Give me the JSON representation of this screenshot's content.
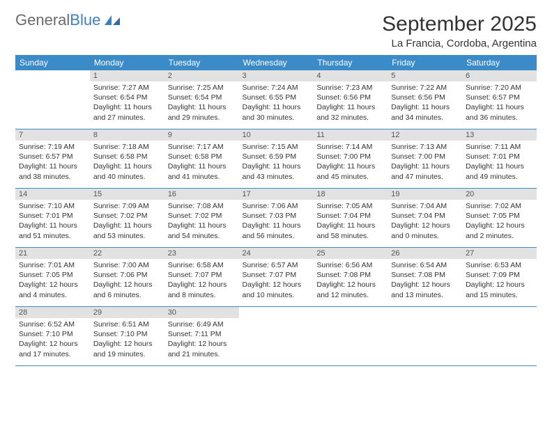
{
  "logo": {
    "text1": "General",
    "text2": "Blue",
    "text1_color": "#6a6a6a",
    "text2_color": "#3b7fc4",
    "fontsize": 22,
    "icon_color": "#3b7fc4"
  },
  "title": {
    "month": "September 2025",
    "month_fontsize": 30,
    "location": "La Francia, Cordoba, Argentina",
    "location_fontsize": 15
  },
  "calendar": {
    "header_bg": "#3b8bc9",
    "header_fg": "#ffffff",
    "daynum_bg": "#e2e2e2",
    "daynum_fg": "#555555",
    "body_fg": "#333333",
    "border_color": "#3b8bc9",
    "body_fontsize": 10.5,
    "daynum_fontsize": 11,
    "header_fontsize": 12,
    "columns": [
      "Sunday",
      "Monday",
      "Tuesday",
      "Wednesday",
      "Thursday",
      "Friday",
      "Saturday"
    ],
    "weeks": [
      [
        {
          "empty": true
        },
        {
          "n": "1",
          "sunrise": "Sunrise: 7:27 AM",
          "sunset": "Sunset: 6:54 PM",
          "day1": "Daylight: 11 hours",
          "day2": "and 27 minutes."
        },
        {
          "n": "2",
          "sunrise": "Sunrise: 7:25 AM",
          "sunset": "Sunset: 6:54 PM",
          "day1": "Daylight: 11 hours",
          "day2": "and 29 minutes."
        },
        {
          "n": "3",
          "sunrise": "Sunrise: 7:24 AM",
          "sunset": "Sunset: 6:55 PM",
          "day1": "Daylight: 11 hours",
          "day2": "and 30 minutes."
        },
        {
          "n": "4",
          "sunrise": "Sunrise: 7:23 AM",
          "sunset": "Sunset: 6:56 PM",
          "day1": "Daylight: 11 hours",
          "day2": "and 32 minutes."
        },
        {
          "n": "5",
          "sunrise": "Sunrise: 7:22 AM",
          "sunset": "Sunset: 6:56 PM",
          "day1": "Daylight: 11 hours",
          "day2": "and 34 minutes."
        },
        {
          "n": "6",
          "sunrise": "Sunrise: 7:20 AM",
          "sunset": "Sunset: 6:57 PM",
          "day1": "Daylight: 11 hours",
          "day2": "and 36 minutes."
        }
      ],
      [
        {
          "n": "7",
          "sunrise": "Sunrise: 7:19 AM",
          "sunset": "Sunset: 6:57 PM",
          "day1": "Daylight: 11 hours",
          "day2": "and 38 minutes."
        },
        {
          "n": "8",
          "sunrise": "Sunrise: 7:18 AM",
          "sunset": "Sunset: 6:58 PM",
          "day1": "Daylight: 11 hours",
          "day2": "and 40 minutes."
        },
        {
          "n": "9",
          "sunrise": "Sunrise: 7:17 AM",
          "sunset": "Sunset: 6:58 PM",
          "day1": "Daylight: 11 hours",
          "day2": "and 41 minutes."
        },
        {
          "n": "10",
          "sunrise": "Sunrise: 7:15 AM",
          "sunset": "Sunset: 6:59 PM",
          "day1": "Daylight: 11 hours",
          "day2": "and 43 minutes."
        },
        {
          "n": "11",
          "sunrise": "Sunrise: 7:14 AM",
          "sunset": "Sunset: 7:00 PM",
          "day1": "Daylight: 11 hours",
          "day2": "and 45 minutes."
        },
        {
          "n": "12",
          "sunrise": "Sunrise: 7:13 AM",
          "sunset": "Sunset: 7:00 PM",
          "day1": "Daylight: 11 hours",
          "day2": "and 47 minutes."
        },
        {
          "n": "13",
          "sunrise": "Sunrise: 7:11 AM",
          "sunset": "Sunset: 7:01 PM",
          "day1": "Daylight: 11 hours",
          "day2": "and 49 minutes."
        }
      ],
      [
        {
          "n": "14",
          "sunrise": "Sunrise: 7:10 AM",
          "sunset": "Sunset: 7:01 PM",
          "day1": "Daylight: 11 hours",
          "day2": "and 51 minutes."
        },
        {
          "n": "15",
          "sunrise": "Sunrise: 7:09 AM",
          "sunset": "Sunset: 7:02 PM",
          "day1": "Daylight: 11 hours",
          "day2": "and 53 minutes."
        },
        {
          "n": "16",
          "sunrise": "Sunrise: 7:08 AM",
          "sunset": "Sunset: 7:02 PM",
          "day1": "Daylight: 11 hours",
          "day2": "and 54 minutes."
        },
        {
          "n": "17",
          "sunrise": "Sunrise: 7:06 AM",
          "sunset": "Sunset: 7:03 PM",
          "day1": "Daylight: 11 hours",
          "day2": "and 56 minutes."
        },
        {
          "n": "18",
          "sunrise": "Sunrise: 7:05 AM",
          "sunset": "Sunset: 7:04 PM",
          "day1": "Daylight: 11 hours",
          "day2": "and 58 minutes."
        },
        {
          "n": "19",
          "sunrise": "Sunrise: 7:04 AM",
          "sunset": "Sunset: 7:04 PM",
          "day1": "Daylight: 12 hours",
          "day2": "and 0 minutes."
        },
        {
          "n": "20",
          "sunrise": "Sunrise: 7:02 AM",
          "sunset": "Sunset: 7:05 PM",
          "day1": "Daylight: 12 hours",
          "day2": "and 2 minutes."
        }
      ],
      [
        {
          "n": "21",
          "sunrise": "Sunrise: 7:01 AM",
          "sunset": "Sunset: 7:05 PM",
          "day1": "Daylight: 12 hours",
          "day2": "and 4 minutes."
        },
        {
          "n": "22",
          "sunrise": "Sunrise: 7:00 AM",
          "sunset": "Sunset: 7:06 PM",
          "day1": "Daylight: 12 hours",
          "day2": "and 6 minutes."
        },
        {
          "n": "23",
          "sunrise": "Sunrise: 6:58 AM",
          "sunset": "Sunset: 7:07 PM",
          "day1": "Daylight: 12 hours",
          "day2": "and 8 minutes."
        },
        {
          "n": "24",
          "sunrise": "Sunrise: 6:57 AM",
          "sunset": "Sunset: 7:07 PM",
          "day1": "Daylight: 12 hours",
          "day2": "and 10 minutes."
        },
        {
          "n": "25",
          "sunrise": "Sunrise: 6:56 AM",
          "sunset": "Sunset: 7:08 PM",
          "day1": "Daylight: 12 hours",
          "day2": "and 12 minutes."
        },
        {
          "n": "26",
          "sunrise": "Sunrise: 6:54 AM",
          "sunset": "Sunset: 7:08 PM",
          "day1": "Daylight: 12 hours",
          "day2": "and 13 minutes."
        },
        {
          "n": "27",
          "sunrise": "Sunrise: 6:53 AM",
          "sunset": "Sunset: 7:09 PM",
          "day1": "Daylight: 12 hours",
          "day2": "and 15 minutes."
        }
      ],
      [
        {
          "n": "28",
          "sunrise": "Sunrise: 6:52 AM",
          "sunset": "Sunset: 7:10 PM",
          "day1": "Daylight: 12 hours",
          "day2": "and 17 minutes."
        },
        {
          "n": "29",
          "sunrise": "Sunrise: 6:51 AM",
          "sunset": "Sunset: 7:10 PM",
          "day1": "Daylight: 12 hours",
          "day2": "and 19 minutes."
        },
        {
          "n": "30",
          "sunrise": "Sunrise: 6:49 AM",
          "sunset": "Sunset: 7:11 PM",
          "day1": "Daylight: 12 hours",
          "day2": "and 21 minutes."
        },
        {
          "empty": true
        },
        {
          "empty": true
        },
        {
          "empty": true
        },
        {
          "empty": true
        }
      ]
    ]
  }
}
